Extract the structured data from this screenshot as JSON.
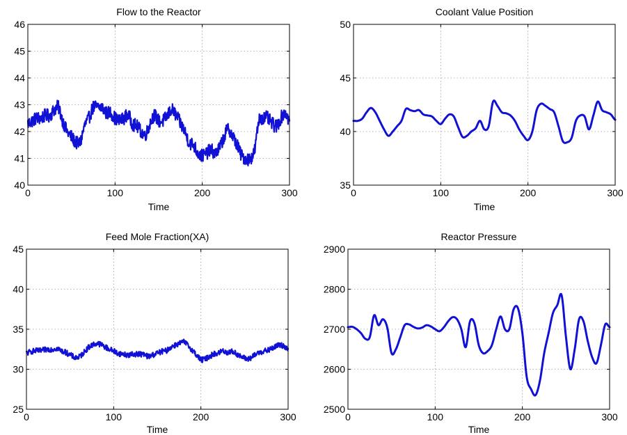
{
  "figure": {
    "background": "#ffffff",
    "line_color": "#1111d6"
  },
  "chart_data": [
    {
      "type": "line",
      "title": "Flow to the Reactor",
      "xlabel": "Time",
      "ylabel": "",
      "xlim": [
        0,
        300
      ],
      "ylim": [
        40,
        46
      ],
      "xticks": [
        0,
        100,
        200,
        300
      ],
      "yticks": [
        40,
        41,
        42,
        43,
        44,
        45,
        46
      ],
      "xtick_labels": [
        "0",
        "100",
        "200",
        "300"
      ],
      "ytick_labels": [
        "40",
        "41",
        "42",
        "43",
        "44",
        "45",
        "46"
      ],
      "grid": true,
      "noise": 0.25,
      "series": [
        {
          "color": "#1111d6",
          "x": [
            0,
            5,
            10,
            15,
            20,
            25,
            30,
            35,
            40,
            45,
            50,
            55,
            60,
            65,
            70,
            75,
            80,
            85,
            90,
            95,
            100,
            105,
            110,
            115,
            120,
            125,
            130,
            135,
            140,
            145,
            150,
            155,
            160,
            165,
            170,
            175,
            180,
            185,
            190,
            195,
            200,
            205,
            210,
            215,
            220,
            225,
            230,
            235,
            240,
            245,
            250,
            255,
            260,
            265,
            270,
            275,
            280,
            285,
            290,
            295,
            300
          ],
          "y": [
            42.3,
            42.4,
            42.5,
            42.5,
            42.6,
            42.6,
            42.8,
            42.9,
            42.4,
            42.0,
            41.8,
            41.6,
            41.6,
            42.2,
            42.5,
            42.9,
            42.9,
            42.9,
            42.7,
            42.7,
            42.5,
            42.4,
            42.5,
            42.6,
            42.3,
            42.2,
            42.0,
            41.9,
            42.3,
            42.6,
            42.4,
            42.4,
            42.6,
            42.8,
            42.6,
            42.3,
            42.0,
            41.6,
            41.5,
            41.2,
            41.1,
            41.2,
            41.3,
            41.2,
            41.4,
            41.8,
            42.1,
            41.8,
            41.5,
            41.1,
            41.0,
            41.0,
            41.3,
            42.4,
            42.5,
            42.5,
            42.3,
            42.2,
            42.5,
            42.7,
            42.4
          ]
        }
      ]
    },
    {
      "type": "line",
      "title": "Coolant Value Position",
      "xlabel": "Time",
      "ylabel": "",
      "xlim": [
        0,
        300
      ],
      "ylim": [
        35,
        50
      ],
      "xticks": [
        0,
        100,
        200,
        300
      ],
      "yticks": [
        35,
        40,
        45,
        50
      ],
      "xtick_labels": [
        "0",
        "100",
        "200",
        "300"
      ],
      "ytick_labels": [
        "35",
        "40",
        "45",
        "50"
      ],
      "grid": true,
      "noise": 0,
      "series": [
        {
          "color": "#1111d6",
          "x": [
            0,
            5,
            10,
            15,
            20,
            25,
            30,
            35,
            40,
            45,
            50,
            55,
            60,
            65,
            70,
            75,
            80,
            85,
            90,
            95,
            100,
            105,
            110,
            115,
            120,
            125,
            130,
            135,
            140,
            145,
            150,
            155,
            160,
            165,
            170,
            175,
            180,
            185,
            190,
            195,
            200,
            205,
            210,
            215,
            220,
            225,
            230,
            235,
            240,
            245,
            250,
            255,
            260,
            265,
            270,
            275,
            280,
            285,
            290,
            295,
            300
          ],
          "y": [
            41.0,
            41.0,
            41.2,
            41.8,
            42.2,
            41.8,
            41.0,
            40.2,
            39.6,
            40.0,
            40.5,
            41.0,
            42.1,
            42.0,
            41.9,
            42.0,
            41.6,
            41.5,
            41.4,
            41.0,
            40.7,
            41.2,
            41.6,
            41.4,
            40.4,
            39.5,
            39.6,
            40.0,
            40.3,
            41.0,
            40.2,
            40.5,
            42.8,
            42.4,
            41.8,
            41.7,
            41.5,
            41.0,
            40.2,
            39.6,
            39.2,
            40.0,
            42.0,
            42.6,
            42.4,
            42.1,
            41.8,
            40.5,
            39.1,
            39.0,
            39.4,
            41.0,
            41.5,
            41.4,
            40.2,
            41.5,
            42.8,
            42.0,
            41.8,
            41.6,
            41.1
          ]
        }
      ]
    },
    {
      "type": "line",
      "title": "Feed Mole Fraction(XA)",
      "xlabel": "Time",
      "ylabel": "",
      "xlim": [
        0,
        300
      ],
      "ylim": [
        25,
        45
      ],
      "xticks": [
        0,
        100,
        200,
        300
      ],
      "yticks": [
        25,
        30,
        35,
        40,
        45
      ],
      "xtick_labels": [
        "0",
        "100",
        "200",
        "300"
      ],
      "ytick_labels": [
        "25",
        "30",
        "35",
        "40",
        "45"
      ],
      "grid": true,
      "noise": 0.35,
      "series": [
        {
          "color": "#1111d6",
          "x": [
            0,
            5,
            10,
            15,
            20,
            25,
            30,
            35,
            40,
            45,
            50,
            55,
            60,
            65,
            70,
            75,
            80,
            85,
            90,
            95,
            100,
            105,
            110,
            115,
            120,
            125,
            130,
            135,
            140,
            145,
            150,
            155,
            160,
            165,
            170,
            175,
            180,
            185,
            190,
            195,
            200,
            205,
            210,
            215,
            220,
            225,
            230,
            235,
            240,
            245,
            250,
            255,
            260,
            265,
            270,
            275,
            280,
            285,
            290,
            295,
            300
          ],
          "y": [
            32.0,
            32.2,
            32.3,
            32.3,
            32.4,
            32.5,
            32.5,
            32.6,
            32.3,
            32.1,
            31.8,
            31.5,
            31.5,
            32.0,
            32.6,
            33.0,
            33.2,
            33.1,
            32.8,
            32.5,
            32.3,
            32.0,
            31.9,
            31.8,
            31.8,
            31.9,
            31.9,
            31.8,
            31.6,
            31.8,
            32.0,
            32.2,
            32.3,
            32.7,
            33.0,
            33.2,
            33.4,
            33.0,
            32.4,
            31.8,
            31.2,
            31.3,
            31.6,
            31.9,
            32.0,
            32.3,
            32.1,
            32.2,
            32.0,
            31.6,
            31.4,
            31.3,
            31.6,
            32.0,
            32.2,
            32.3,
            32.5,
            32.8,
            33.0,
            32.9,
            32.6
          ]
        }
      ]
    },
    {
      "type": "line",
      "title": "Reactor Pressure",
      "xlabel": "Time",
      "ylabel": "",
      "xlim": [
        0,
        300
      ],
      "ylim": [
        2500,
        2900
      ],
      "xticks": [
        0,
        100,
        200,
        300
      ],
      "yticks": [
        2500,
        2600,
        2700,
        2800,
        2900
      ],
      "xtick_labels": [
        "0",
        "100",
        "200",
        "300"
      ],
      "ytick_labels": [
        "2500",
        "2600",
        "2700",
        "2800",
        "2900"
      ],
      "grid": true,
      "noise": 0,
      "series": [
        {
          "color": "#1111d6",
          "x": [
            0,
            5,
            10,
            15,
            20,
            25,
            30,
            35,
            40,
            45,
            50,
            55,
            60,
            65,
            70,
            75,
            80,
            85,
            90,
            95,
            100,
            105,
            110,
            115,
            120,
            125,
            130,
            135,
            140,
            145,
            150,
            155,
            160,
            165,
            170,
            175,
            180,
            185,
            190,
            195,
            200,
            205,
            210,
            215,
            220,
            225,
            230,
            235,
            240,
            245,
            250,
            255,
            260,
            265,
            270,
            275,
            280,
            285,
            290,
            295,
            300
          ],
          "y": [
            2705,
            2706,
            2700,
            2690,
            2676,
            2680,
            2735,
            2710,
            2725,
            2705,
            2640,
            2650,
            2680,
            2710,
            2712,
            2706,
            2702,
            2704,
            2710,
            2707,
            2700,
            2695,
            2705,
            2720,
            2730,
            2725,
            2700,
            2655,
            2720,
            2715,
            2660,
            2640,
            2645,
            2660,
            2700,
            2732,
            2700,
            2700,
            2750,
            2752,
            2690,
            2580,
            2550,
            2535,
            2570,
            2640,
            2690,
            2740,
            2760,
            2785,
            2680,
            2600,
            2650,
            2725,
            2720,
            2670,
            2630,
            2615,
            2660,
            2712,
            2705
          ]
        }
      ]
    }
  ]
}
